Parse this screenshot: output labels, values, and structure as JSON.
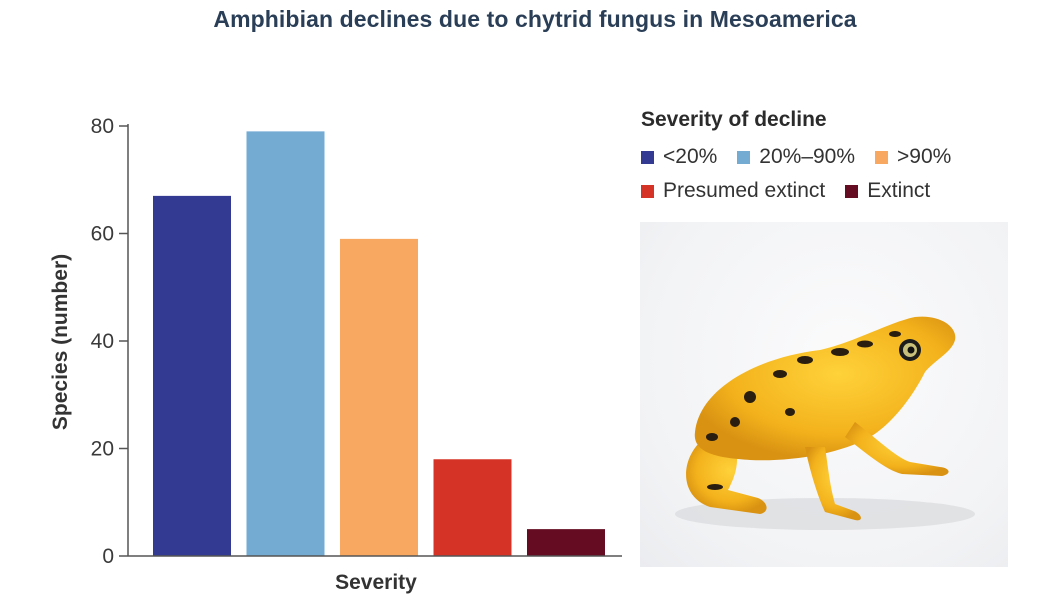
{
  "chart_data": {
    "type": "bar",
    "title": "Amphibian declines due to chytrid fungus in Mesoamerica",
    "xlabel": "Severity",
    "ylabel": "Species (number)",
    "ylim": [
      0,
      80
    ],
    "yticks": [
      0,
      20,
      40,
      60,
      80
    ],
    "grid": false,
    "legend_title": "Severity of decline",
    "legend_position": "top-right",
    "categories": [
      "<20%",
      "20%–90%",
      ">90%",
      "Presumed extinct",
      "Extinct"
    ],
    "values": [
      67,
      79,
      59,
      18,
      5
    ],
    "colors": [
      "#333a91",
      "#73abd3",
      "#f9a862",
      "#d63327",
      "#650c22"
    ]
  },
  "photo": {
    "subject_icon": "golden-frog-photo-icon"
  }
}
